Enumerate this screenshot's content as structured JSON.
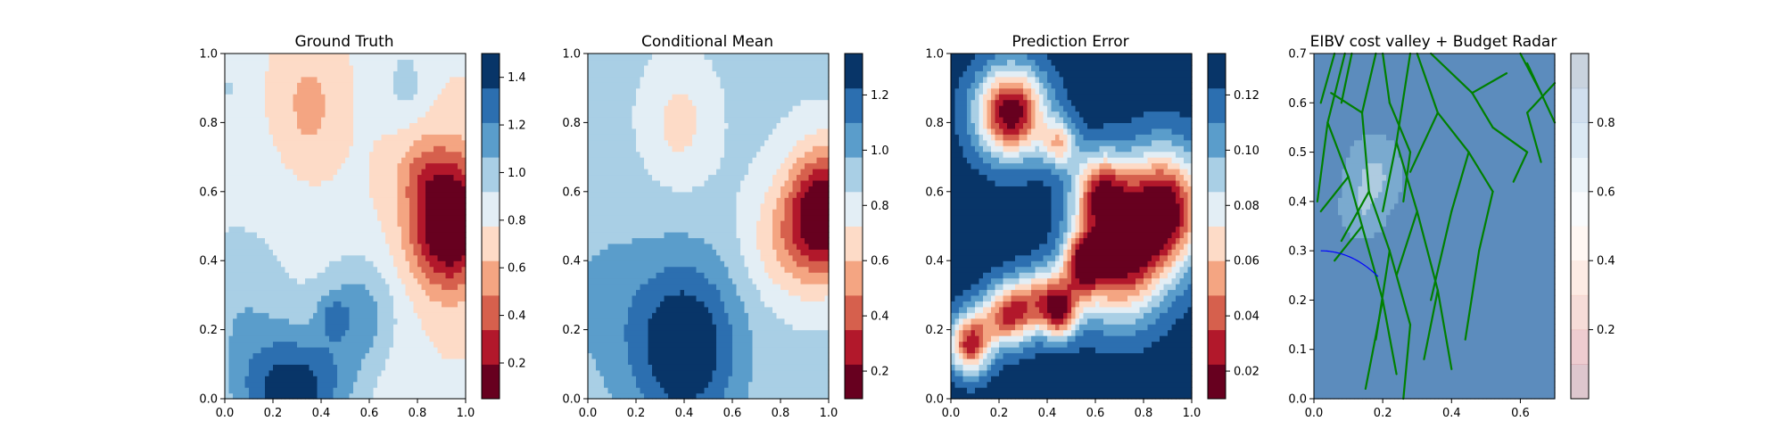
{
  "chart_data": [
    {
      "type": "heatmap",
      "title": "Ground Truth",
      "xlim": [
        0,
        1
      ],
      "ylim": [
        0,
        1
      ],
      "x_ticks": [
        "0.0",
        "0.2",
        "0.4",
        "0.6",
        "0.8",
        "1.0"
      ],
      "y_ticks": [
        "0.0",
        "0.2",
        "0.4",
        "0.6",
        "0.8",
        "1.0"
      ],
      "colormap": "RdBu",
      "colorbar": {
        "range": [
          0.05,
          1.5
        ],
        "levels": 10,
        "ticks": [
          "0.2",
          "0.4",
          "0.6",
          "0.8",
          "1.0",
          "1.2",
          "1.4"
        ]
      },
      "field": {
        "base": 0.78,
        "bumps": [
          {
            "x": 0.95,
            "y": 0.52,
            "amp": -0.78,
            "sx": 0.1,
            "sy": 0.13
          },
          {
            "x": 0.82,
            "y": 0.65,
            "amp": -0.25,
            "sx": 0.08,
            "sy": 0.08
          },
          {
            "x": 0.85,
            "y": 0.45,
            "amp": -0.2,
            "sx": 0.1,
            "sy": 0.1
          },
          {
            "x": 0.35,
            "y": 0.85,
            "amp": -0.22,
            "sx": 0.07,
            "sy": 0.1
          },
          {
            "x": 0.28,
            "y": 0.02,
            "amp": 0.65,
            "sx": 0.17,
            "sy": 0.12
          },
          {
            "x": 0.55,
            "y": 0.25,
            "amp": 0.35,
            "sx": 0.12,
            "sy": 0.12
          },
          {
            "x": 0.45,
            "y": 0.24,
            "amp": 0.2,
            "sx": 0.04,
            "sy": 0.04
          },
          {
            "x": 0.05,
            "y": 0.3,
            "amp": 0.25,
            "sx": 0.18,
            "sy": 0.18
          },
          {
            "x": 0.75,
            "y": 0.92,
            "amp": 0.2,
            "sx": 0.06,
            "sy": 0.08
          },
          {
            "x": 0.02,
            "y": 0.9,
            "amp": 0.15,
            "sx": 0.05,
            "sy": 0.05
          }
        ]
      }
    },
    {
      "type": "heatmap",
      "title": "Conditional Mean",
      "xlim": [
        0,
        1
      ],
      "ylim": [
        0,
        1
      ],
      "x_ticks": [
        "0.0",
        "0.2",
        "0.4",
        "0.6",
        "0.8",
        "1.0"
      ],
      "y_ticks": [
        "0.0",
        "0.2",
        "0.4",
        "0.6",
        "0.8",
        "1.0"
      ],
      "colormap": "RdBu",
      "colorbar": {
        "range": [
          0.1,
          1.35
        ],
        "levels": 10,
        "ticks": [
          "0.2",
          "0.4",
          "0.6",
          "0.8",
          "1.0",
          "1.2"
        ]
      },
      "field": {
        "base": 0.88,
        "bumps": [
          {
            "x": 0.98,
            "y": 0.54,
            "amp": -0.82,
            "sx": 0.11,
            "sy": 0.13
          },
          {
            "x": 0.8,
            "y": 0.45,
            "amp": -0.2,
            "sx": 0.12,
            "sy": 0.12
          },
          {
            "x": 0.38,
            "y": 0.8,
            "amp": -0.2,
            "sx": 0.1,
            "sy": 0.12
          },
          {
            "x": 0.4,
            "y": 0.15,
            "amp": 0.5,
            "sx": 0.16,
            "sy": 0.18
          },
          {
            "x": 0.05,
            "y": 0.3,
            "amp": 0.1,
            "sx": 0.15,
            "sy": 0.2
          }
        ]
      }
    },
    {
      "type": "heatmap",
      "title": "Prediction Error",
      "xlim": [
        0,
        1
      ],
      "ylim": [
        0,
        1
      ],
      "x_ticks": [
        "0.0",
        "0.2",
        "0.4",
        "0.6",
        "0.8",
        "1.0"
      ],
      "y_ticks": [
        "0.0",
        "0.2",
        "0.4",
        "0.6",
        "0.8",
        "1.0"
      ],
      "colormap": "RdBu",
      "colorbar": {
        "range": [
          0.01,
          0.135
        ],
        "levels": 10,
        "ticks": [
          "0.02",
          "0.04",
          "0.06",
          "0.08",
          "0.10",
          "0.12"
        ]
      },
      "field": {
        "base": 0.13,
        "bumps": [
          {
            "x": 0.25,
            "y": 0.83,
            "amp": -0.12,
            "sx": 0.1,
            "sy": 0.09
          },
          {
            "x": 0.45,
            "y": 0.74,
            "amp": -0.06,
            "sx": 0.05,
            "sy": 0.05
          },
          {
            "x": 0.88,
            "y": 0.55,
            "amp": -0.12,
            "sx": 0.12,
            "sy": 0.12
          },
          {
            "x": 0.7,
            "y": 0.4,
            "amp": -0.1,
            "sx": 0.12,
            "sy": 0.12
          },
          {
            "x": 0.62,
            "y": 0.6,
            "amp": -0.09,
            "sx": 0.08,
            "sy": 0.08
          },
          {
            "x": 0.55,
            "y": 0.4,
            "amp": -0.08,
            "sx": 0.06,
            "sy": 0.06
          },
          {
            "x": 0.4,
            "y": 0.3,
            "amp": -0.07,
            "sx": 0.1,
            "sy": 0.06
          },
          {
            "x": 0.08,
            "y": 0.16,
            "amp": -0.1,
            "sx": 0.06,
            "sy": 0.06
          },
          {
            "x": 0.24,
            "y": 0.24,
            "amp": -0.09,
            "sx": 0.08,
            "sy": 0.06
          },
          {
            "x": 0.45,
            "y": 0.24,
            "amp": -0.07,
            "sx": 0.05,
            "sy": 0.05
          }
        ]
      }
    },
    {
      "type": "heatmap",
      "title": "EIBV cost valley + Budget Radar",
      "xlim": [
        0,
        0.7
      ],
      "ylim": [
        0,
        0.7
      ],
      "x_ticks": [
        "0.0",
        "0.2",
        "0.4",
        "0.6"
      ],
      "y_ticks": [
        "0.0",
        "0.1",
        "0.2",
        "0.3",
        "0.4",
        "0.5",
        "0.6",
        "0.7"
      ],
      "colormap": "RdBu",
      "colorbar": {
        "range": [
          0,
          1
        ],
        "levels": 10,
        "ticks": [
          "0.2",
          "0.4",
          "0.6",
          "0.8"
        ]
      },
      "field": {
        "base": 0.82,
        "bumps": [
          {
            "x": 0.25,
            "y": 0.65,
            "amp": -0.15,
            "sx": 0.06,
            "sy": 0.06
          },
          {
            "x": 0.2,
            "y": 0.55,
            "amp": -0.1,
            "sx": 0.05,
            "sy": 0.05
          }
        ]
      },
      "radar_arc": {
        "color": "#0000ff",
        "center": [
          0.02,
          0.01
        ],
        "radius": 0.29,
        "angle_range": [
          90,
          55
        ]
      },
      "paths": {
        "color": "#008000",
        "segments": [
          [
            [
              0.09,
              0.7
            ],
            [
              0.04,
              0.56
            ]
          ],
          [
            [
              0.04,
              0.56
            ],
            [
              0.01,
              0.4
            ]
          ],
          [
            [
              0.04,
              0.56
            ],
            [
              0.1,
              0.45
            ]
          ],
          [
            [
              0.1,
              0.45
            ],
            [
              0.02,
              0.38
            ]
          ],
          [
            [
              0.1,
              0.45
            ],
            [
              0.14,
              0.35
            ]
          ],
          [
            [
              0.14,
              0.35
            ],
            [
              0.06,
              0.28
            ]
          ],
          [
            [
              0.14,
              0.35
            ],
            [
              0.2,
              0.2
            ]
          ],
          [
            [
              0.2,
              0.2
            ],
            [
              0.15,
              0.02
            ]
          ],
          [
            [
              0.2,
              0.2
            ],
            [
              0.24,
              0.05
            ]
          ],
          [
            [
              0.18,
              0.7
            ],
            [
              0.14,
              0.58
            ]
          ],
          [
            [
              0.14,
              0.58
            ],
            [
              0.05,
              0.62
            ]
          ],
          [
            [
              0.14,
              0.58
            ],
            [
              0.16,
              0.42
            ]
          ],
          [
            [
              0.16,
              0.42
            ],
            [
              0.08,
              0.32
            ]
          ],
          [
            [
              0.16,
              0.42
            ],
            [
              0.22,
              0.3
            ]
          ],
          [
            [
              0.22,
              0.3
            ],
            [
              0.18,
              0.12
            ]
          ],
          [
            [
              0.22,
              0.3
            ],
            [
              0.28,
              0.15
            ]
          ],
          [
            [
              0.28,
              0.15
            ],
            [
              0.26,
              0.0
            ]
          ],
          [
            [
              0.28,
              0.7
            ],
            [
              0.24,
              0.52
            ]
          ],
          [
            [
              0.24,
              0.52
            ],
            [
              0.3,
              0.38
            ]
          ],
          [
            [
              0.3,
              0.38
            ],
            [
              0.24,
              0.25
            ]
          ],
          [
            [
              0.3,
              0.38
            ],
            [
              0.36,
              0.22
            ]
          ],
          [
            [
              0.36,
              0.22
            ],
            [
              0.32,
              0.08
            ]
          ],
          [
            [
              0.36,
              0.22
            ],
            [
              0.4,
              0.06
            ]
          ],
          [
            [
              0.24,
              0.52
            ],
            [
              0.2,
              0.38
            ]
          ],
          [
            [
              0.3,
              0.7
            ],
            [
              0.36,
              0.58
            ]
          ],
          [
            [
              0.36,
              0.58
            ],
            [
              0.28,
              0.46
            ]
          ],
          [
            [
              0.36,
              0.58
            ],
            [
              0.45,
              0.5
            ]
          ],
          [
            [
              0.45,
              0.5
            ],
            [
              0.4,
              0.38
            ]
          ],
          [
            [
              0.4,
              0.38
            ],
            [
              0.34,
              0.2
            ]
          ],
          [
            [
              0.45,
              0.5
            ],
            [
              0.52,
              0.42
            ]
          ],
          [
            [
              0.52,
              0.42
            ],
            [
              0.48,
              0.3
            ]
          ],
          [
            [
              0.48,
              0.3
            ],
            [
              0.44,
              0.12
            ]
          ],
          [
            [
              0.34,
              0.7
            ],
            [
              0.46,
              0.62
            ]
          ],
          [
            [
              0.46,
              0.62
            ],
            [
              0.56,
              0.66
            ]
          ],
          [
            [
              0.46,
              0.62
            ],
            [
              0.52,
              0.55
            ]
          ],
          [
            [
              0.52,
              0.55
            ],
            [
              0.62,
              0.5
            ]
          ],
          [
            [
              0.62,
              0.5
            ],
            [
              0.58,
              0.44
            ]
          ],
          [
            [
              0.6,
              0.7
            ],
            [
              0.66,
              0.62
            ]
          ],
          [
            [
              0.66,
              0.62
            ],
            [
              0.7,
              0.56
            ]
          ],
          [
            [
              0.66,
              0.62
            ],
            [
              0.62,
              0.68
            ]
          ],
          [
            [
              0.7,
              0.64
            ],
            [
              0.62,
              0.58
            ]
          ],
          [
            [
              0.62,
              0.58
            ],
            [
              0.66,
              0.48
            ]
          ],
          [
            [
              0.2,
              0.7
            ],
            [
              0.22,
              0.6
            ]
          ],
          [
            [
              0.22,
              0.6
            ],
            [
              0.28,
              0.5
            ]
          ],
          [
            [
              0.28,
              0.5
            ],
            [
              0.26,
              0.4
            ]
          ],
          [
            [
              0.06,
              0.7
            ],
            [
              0.02,
              0.6
            ]
          ],
          [
            [
              0.11,
              0.7
            ],
            [
              0.08,
              0.6
            ]
          ]
        ]
      }
    }
  ]
}
